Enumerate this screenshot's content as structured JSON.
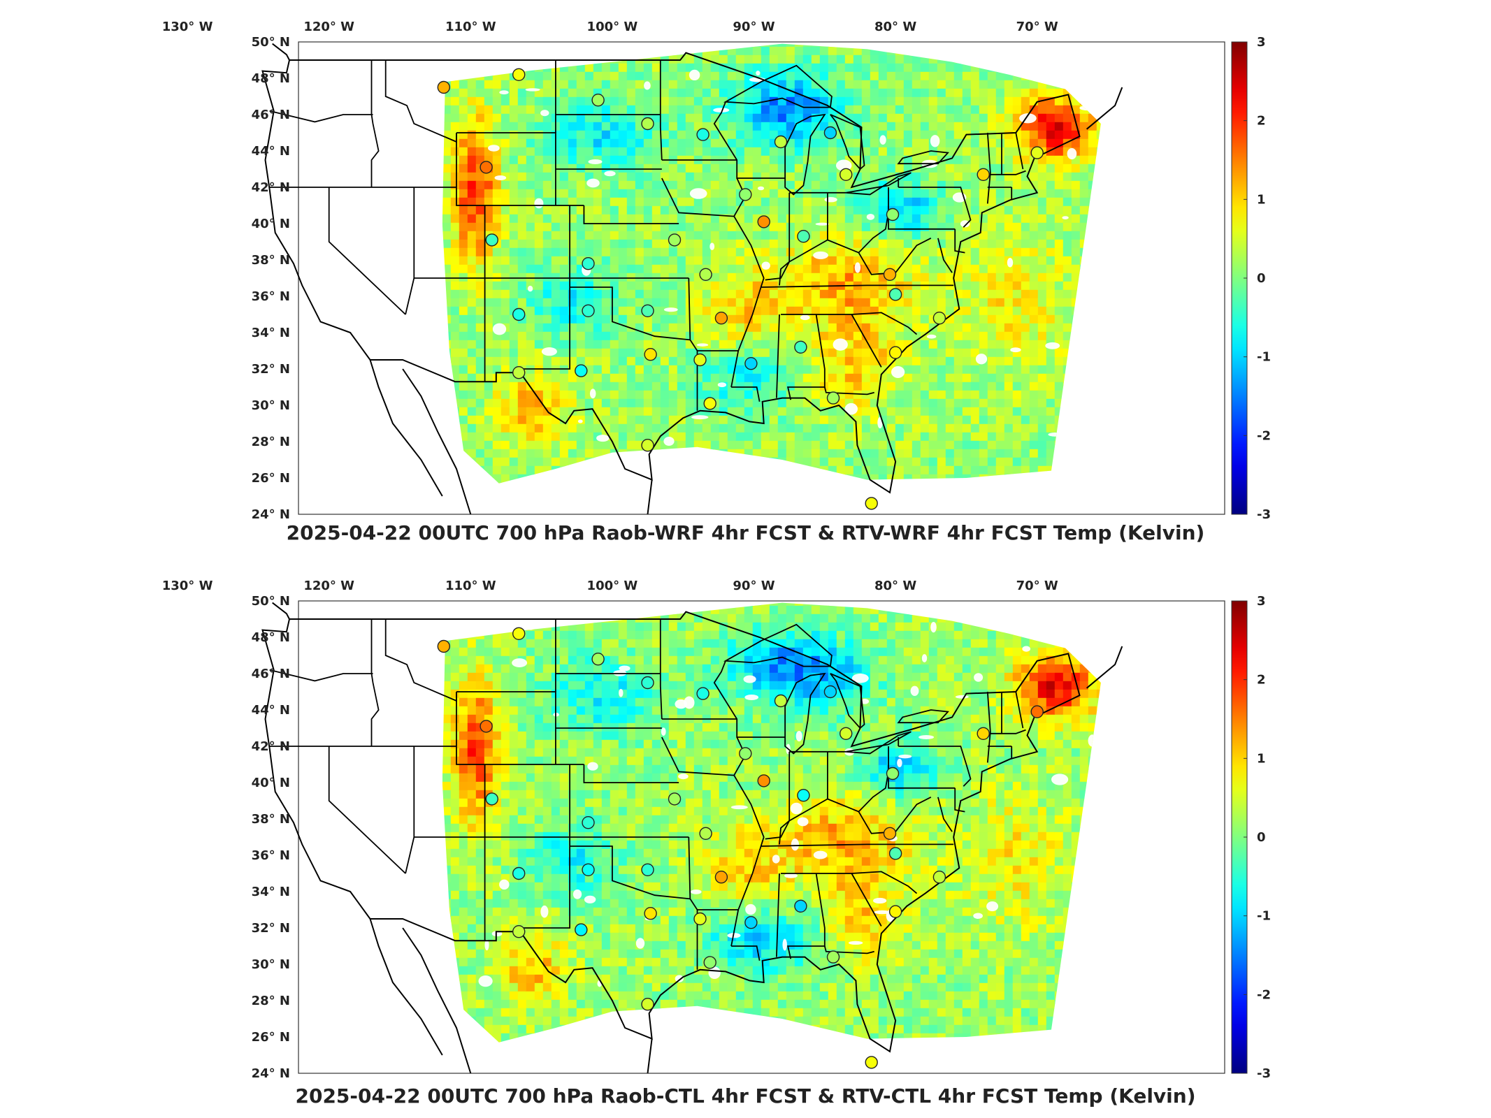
{
  "panels": [
    {
      "title": "2025-04-22 00UTC 700 hPa Raob-WRF 4hr FCST & RTV-WRF 4hr FCST Temp (Kelvin)",
      "variant": "wrf",
      "stations": [
        {
          "lon": -111.9,
          "lat": 47.5,
          "v": 1.2
        },
        {
          "lon": -106.6,
          "lat": 48.2,
          "v": 0.7
        },
        {
          "lon": -101.0,
          "lat": 46.8,
          "v": 0.2
        },
        {
          "lon": -97.5,
          "lat": 45.5,
          "v": 0.3
        },
        {
          "lon": -93.6,
          "lat": 44.9,
          "v": -0.6
        },
        {
          "lon": -88.1,
          "lat": 44.5,
          "v": 0.4
        },
        {
          "lon": -84.6,
          "lat": 45.0,
          "v": -1.0
        },
        {
          "lon": -83.5,
          "lat": 42.7,
          "v": 0.5
        },
        {
          "lon": -73.8,
          "lat": 42.7,
          "v": 1.0
        },
        {
          "lon": -70.0,
          "lat": 43.9,
          "v": 0.6
        },
        {
          "lon": -108.9,
          "lat": 43.1,
          "v": 1.6
        },
        {
          "lon": -90.6,
          "lat": 41.6,
          "v": 0.1
        },
        {
          "lon": -89.3,
          "lat": 40.1,
          "v": 1.4
        },
        {
          "lon": -80.2,
          "lat": 40.5,
          "v": 0.1
        },
        {
          "lon": -108.5,
          "lat": 39.1,
          "v": -0.4
        },
        {
          "lon": -101.7,
          "lat": 37.8,
          "v": -0.5
        },
        {
          "lon": -95.6,
          "lat": 39.1,
          "v": 0.2
        },
        {
          "lon": -86.5,
          "lat": 39.3,
          "v": -0.3
        },
        {
          "lon": -93.4,
          "lat": 37.2,
          "v": 0.3
        },
        {
          "lon": -80.4,
          "lat": 37.2,
          "v": 1.2
        },
        {
          "lon": -106.6,
          "lat": 35.0,
          "v": -0.6
        },
        {
          "lon": -101.7,
          "lat": 35.2,
          "v": -0.5
        },
        {
          "lon": -97.5,
          "lat": 35.2,
          "v": -0.3
        },
        {
          "lon": -92.3,
          "lat": 34.8,
          "v": 1.3
        },
        {
          "lon": -80.0,
          "lat": 36.1,
          "v": -0.3
        },
        {
          "lon": -76.9,
          "lat": 34.8,
          "v": 0.4
        },
        {
          "lon": -106.6,
          "lat": 31.8,
          "v": 0.4
        },
        {
          "lon": -102.2,
          "lat": 31.9,
          "v": -0.7
        },
        {
          "lon": -97.3,
          "lat": 32.8,
          "v": 0.9
        },
        {
          "lon": -93.8,
          "lat": 32.5,
          "v": 0.6
        },
        {
          "lon": -90.2,
          "lat": 32.3,
          "v": -1.0
        },
        {
          "lon": -86.7,
          "lat": 33.2,
          "v": -0.4
        },
        {
          "lon": -80.0,
          "lat": 32.9,
          "v": 0.8
        },
        {
          "lon": -93.1,
          "lat": 30.1,
          "v": 0.7
        },
        {
          "lon": -97.5,
          "lat": 27.8,
          "v": 0.5
        },
        {
          "lon": -84.4,
          "lat": 30.4,
          "v": 0.2
        },
        {
          "lon": -81.7,
          "lat": 24.6,
          "v": 0.7
        }
      ]
    },
    {
      "title": "2025-04-22 00UTC 700 hPa Raob-CTL 4hr FCST & RTV-CTL 4hr FCST Temp (Kelvin)",
      "variant": "ctl",
      "stations": [
        {
          "lon": -111.9,
          "lat": 47.5,
          "v": 1.2
        },
        {
          "lon": -106.6,
          "lat": 48.2,
          "v": 0.7
        },
        {
          "lon": -101.0,
          "lat": 46.8,
          "v": 0.2
        },
        {
          "lon": -97.5,
          "lat": 45.5,
          "v": -0.5
        },
        {
          "lon": -93.6,
          "lat": 44.9,
          "v": -0.6
        },
        {
          "lon": -88.1,
          "lat": 44.5,
          "v": 0.4
        },
        {
          "lon": -84.6,
          "lat": 45.0,
          "v": -1.0
        },
        {
          "lon": -83.5,
          "lat": 42.7,
          "v": 0.5
        },
        {
          "lon": -73.8,
          "lat": 42.7,
          "v": 1.0
        },
        {
          "lon": -70.0,
          "lat": 43.9,
          "v": 1.6
        },
        {
          "lon": -108.9,
          "lat": 43.1,
          "v": 1.6
        },
        {
          "lon": -90.6,
          "lat": 41.6,
          "v": 0.1
        },
        {
          "lon": -89.3,
          "lat": 40.1,
          "v": 1.4
        },
        {
          "lon": -80.2,
          "lat": 40.5,
          "v": 0.1
        },
        {
          "lon": -108.5,
          "lat": 39.1,
          "v": -0.4
        },
        {
          "lon": -101.7,
          "lat": 37.8,
          "v": -0.5
        },
        {
          "lon": -95.6,
          "lat": 39.1,
          "v": 0.2
        },
        {
          "lon": -86.5,
          "lat": 39.3,
          "v": -0.7
        },
        {
          "lon": -93.4,
          "lat": 37.2,
          "v": 0.3
        },
        {
          "lon": -80.4,
          "lat": 37.2,
          "v": 1.2
        },
        {
          "lon": -106.6,
          "lat": 35.0,
          "v": -0.6
        },
        {
          "lon": -101.7,
          "lat": 35.2,
          "v": -0.7
        },
        {
          "lon": -97.5,
          "lat": 35.2,
          "v": -0.5
        },
        {
          "lon": -92.3,
          "lat": 34.8,
          "v": 1.3
        },
        {
          "lon": -80.0,
          "lat": 36.1,
          "v": -0.3
        },
        {
          "lon": -76.9,
          "lat": 34.8,
          "v": 0.4
        },
        {
          "lon": -106.6,
          "lat": 31.8,
          "v": 0.4
        },
        {
          "lon": -102.2,
          "lat": 31.9,
          "v": -0.8
        },
        {
          "lon": -97.3,
          "lat": 32.8,
          "v": 0.9
        },
        {
          "lon": -93.8,
          "lat": 32.5,
          "v": 0.6
        },
        {
          "lon": -90.2,
          "lat": 32.3,
          "v": -1.0
        },
        {
          "lon": -86.7,
          "lat": 33.2,
          "v": -1.0
        },
        {
          "lon": -80.0,
          "lat": 32.9,
          "v": 0.8
        },
        {
          "lon": -93.1,
          "lat": 30.1,
          "v": 0.1
        },
        {
          "lon": -97.5,
          "lat": 27.8,
          "v": 0.5
        },
        {
          "lon": -84.4,
          "lat": 30.4,
          "v": 0.2
        },
        {
          "lon": -81.7,
          "lat": 24.6,
          "v": 0.7
        }
      ]
    }
  ],
  "map": {
    "lon_ticks": [
      "130° W",
      "120° W",
      "110° W",
      "100° W",
      "90° W",
      "80° W",
      "70° W"
    ],
    "lon_values": [
      -130,
      -120,
      -110,
      -100,
      -90,
      -80,
      -70
    ],
    "lat_ticks": [
      "50° N",
      "48° N",
      "46° N",
      "44° N",
      "42° N",
      "40° N",
      "38° N",
      "36° N",
      "34° N",
      "32° N",
      "30° N",
      "28° N",
      "26° N",
      "24° N"
    ],
    "lat_values": [
      50,
      48,
      46,
      44,
      42,
      40,
      38,
      36,
      34,
      32,
      30,
      28,
      26,
      24
    ]
  },
  "colorbar": {
    "colormap": "jet",
    "min": -3,
    "max": 3,
    "ticks": [
      "3",
      "2",
      "1",
      "0",
      "-1",
      "-2",
      "-3"
    ],
    "tick_values": [
      3,
      2,
      1,
      0,
      -1,
      -2,
      -3
    ]
  }
}
